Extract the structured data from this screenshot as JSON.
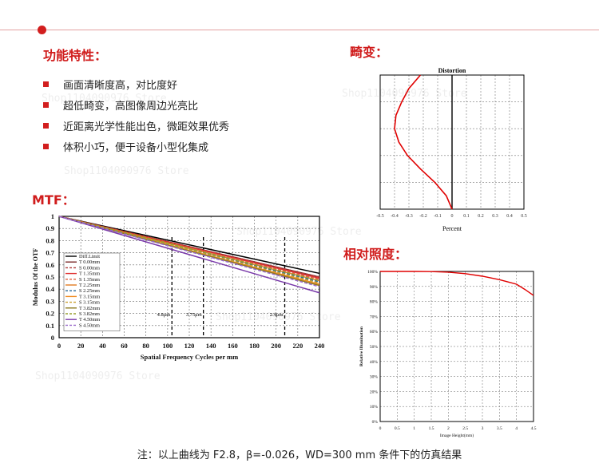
{
  "headings": {
    "features": "功能特性：",
    "distortion": "畸变：",
    "mtf": "MTF：",
    "illumination": "相对照度："
  },
  "features": [
    "画面清晰度高，对比度好",
    "超低畸变，高图像周边光亮比",
    "近距离光学性能出色，微距效果优秀",
    "体积小巧，便于设备小型化集成"
  ],
  "watermark": "Shop1104090976 Store",
  "note": "注：以上曲线为 F2.8，β=-0.026，WD=300 mm 条件下的仿真结果",
  "colors": {
    "accent": "#d21e1e",
    "curve": "#e00000"
  },
  "chart_data": [
    {
      "type": "line",
      "title": "Distortion",
      "xlabel": "Percent",
      "ylabel": "",
      "xlim": [
        -0.5,
        0.5
      ],
      "ylim": [
        0,
        1
      ],
      "x_ticks": [
        "-0.5",
        "-0.4",
        "-0.3",
        "-0.2",
        "-0.1",
        "0",
        "0.1",
        "0.2",
        "0.3",
        "0.4",
        "0.5"
      ],
      "grid": true,
      "series": [
        {
          "x": [
            0,
            -0.04,
            -0.12,
            -0.22,
            -0.31,
            -0.37,
            -0.4,
            -0.39,
            -0.35,
            -0.3,
            -0.22
          ],
          "y": [
            0,
            0.1,
            0.2,
            0.3,
            0.4,
            0.5,
            0.6,
            0.7,
            0.8,
            0.9,
            1.0
          ],
          "color": "#e00000"
        }
      ]
    },
    {
      "type": "line",
      "title": "",
      "xlabel": "Spatial Frequency Cycles per mm",
      "ylabel": "Modulus Of the OTF",
      "xlim": [
        0,
        240
      ],
      "ylim": [
        0,
        1
      ],
      "x_ticks": [
        "0",
        "20",
        "40",
        "60",
        "80",
        "100",
        "120",
        "140",
        "160",
        "180",
        "200",
        "220",
        "240"
      ],
      "y_ticks": [
        "0",
        "0.1",
        "0.2",
        "0.3",
        "0.4",
        "0.5",
        "0.6",
        "0.7",
        "0.8",
        "0.9",
        "1"
      ],
      "annotations": [
        {
          "x": 104,
          "label": "4.8μm"
        },
        {
          "x": 133,
          "label": "3.75μm"
        },
        {
          "x": 208,
          "label": "2.4μm"
        }
      ],
      "x": [
        0,
        240
      ],
      "series": [
        {
          "name": "Diff.Limit",
          "values": [
            1.0,
            0.53
          ],
          "color": "#000000",
          "dash": false
        },
        {
          "name": "T 0.00mm",
          "values": [
            1.0,
            0.5
          ],
          "color": "#7a2a2a",
          "dash": false
        },
        {
          "name": "S 0.00mm",
          "values": [
            1.0,
            0.5
          ],
          "color": "#b03a3a",
          "dash": true
        },
        {
          "name": "T 1.35mm",
          "values": [
            1.0,
            0.49
          ],
          "color": "#e03030",
          "dash": false
        },
        {
          "name": "S 1.35mm",
          "values": [
            1.0,
            0.48
          ],
          "color": "#e06040",
          "dash": true
        },
        {
          "name": "T 2.25mm",
          "values": [
            1.0,
            0.47
          ],
          "color": "#e07a20",
          "dash": false
        },
        {
          "name": "S 2.25mm",
          "values": [
            1.0,
            0.46
          ],
          "color": "#2a6a9a",
          "dash": true
        },
        {
          "name": "T 3.15mm",
          "values": [
            1.0,
            0.44
          ],
          "color": "#f08a20",
          "dash": false
        },
        {
          "name": "S 3.15mm",
          "values": [
            1.0,
            0.45
          ],
          "color": "#caa030",
          "dash": true
        },
        {
          "name": "T 3.82mm",
          "values": [
            1.0,
            0.43
          ],
          "color": "#8c7a20",
          "dash": false
        },
        {
          "name": "S 3.82mm",
          "values": [
            1.0,
            0.47
          ],
          "color": "#9aa030",
          "dash": true
        },
        {
          "name": "T 4.50mm",
          "values": [
            1.0,
            0.37
          ],
          "color": "#7a3aaa",
          "dash": false
        },
        {
          "name": "S 4.50mm",
          "values": [
            1.0,
            0.42
          ],
          "color": "#9a6acc",
          "dash": true
        }
      ]
    },
    {
      "type": "line",
      "title": "",
      "xlabel": "Image Height(mm)",
      "ylabel": "Relative Illumination",
      "xlim": [
        0,
        4.5
      ],
      "ylim": [
        0,
        100
      ],
      "x_ticks": [
        "0",
        "0.5",
        "1",
        "1.5",
        "2",
        "2.5",
        "3",
        "3.5",
        "4",
        "4.5"
      ],
      "y_ticks": [
        "0%",
        "10%",
        "20%",
        "30%",
        "40%",
        "50%",
        "60%",
        "70%",
        "80%",
        "90%",
        "100%"
      ],
      "grid": true,
      "series": [
        {
          "x": [
            0,
            0.5,
            1,
            1.5,
            2,
            2.5,
            3,
            3.5,
            4,
            4.25,
            4.5
          ],
          "y": [
            100,
            100,
            100,
            99.9,
            99.5,
            98.5,
            96.8,
            94.5,
            91.5,
            88,
            84
          ],
          "color": "#e00000"
        }
      ]
    }
  ]
}
